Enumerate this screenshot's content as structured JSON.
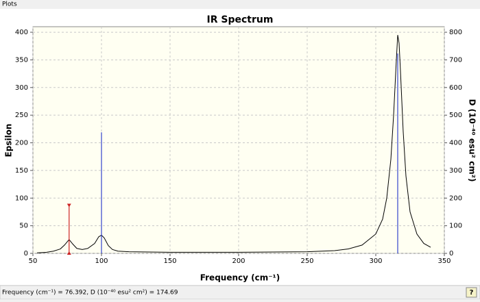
{
  "window": {
    "title": "Plots"
  },
  "status": "Frequency (cm⁻¹) = 76.392, D (10⁻⁴⁰ esu² cm²) = 174.69",
  "help": "?",
  "chart_data": {
    "type": "line",
    "title": "IR Spectrum",
    "x_label": "Frequency (cm⁻¹)",
    "y_label": "Epsilon",
    "y2_label": "D (10⁻⁴⁰ esu² cm²)",
    "xlim": [
      50,
      350
    ],
    "ylim": [
      0,
      410
    ],
    "y2lim": [
      0,
      820
    ],
    "xticks": [
      50,
      100,
      150,
      200,
      250,
      300,
      350
    ],
    "yticks": [
      0,
      50,
      100,
      150,
      200,
      250,
      300,
      350,
      400
    ],
    "y2ticks": [
      0,
      100,
      200,
      300,
      400,
      500,
      600,
      700,
      800
    ],
    "grid": true,
    "series": [
      {
        "color": "#000000",
        "x": [
          53,
          60,
          65,
          70,
          73,
          76.4,
          79,
          82,
          86,
          90,
          95,
          98,
          100,
          102,
          105,
          108,
          112,
          120,
          150,
          200,
          250,
          270,
          280,
          290,
          300,
          305,
          308,
          311,
          313,
          315,
          316,
          317,
          318,
          320,
          322,
          325,
          330,
          335,
          340
        ],
        "values": [
          1,
          2,
          4,
          8,
          15,
          25,
          17,
          9,
          7,
          9,
          18,
          30,
          33,
          28,
          14,
          7,
          4,
          3,
          2,
          2,
          3,
          5,
          8,
          15,
          35,
          62,
          100,
          170,
          250,
          350,
          395,
          380,
          330,
          220,
          140,
          75,
          35,
          18,
          11
        ]
      },
      {
        "type": "stick",
        "axis": "y2",
        "colors": [
          "#cc2222",
          "#3344cc",
          "#3344cc"
        ],
        "x": [
          76.392,
          100,
          316
        ],
        "values": [
          174.69,
          438,
          723
        ]
      }
    ]
  }
}
